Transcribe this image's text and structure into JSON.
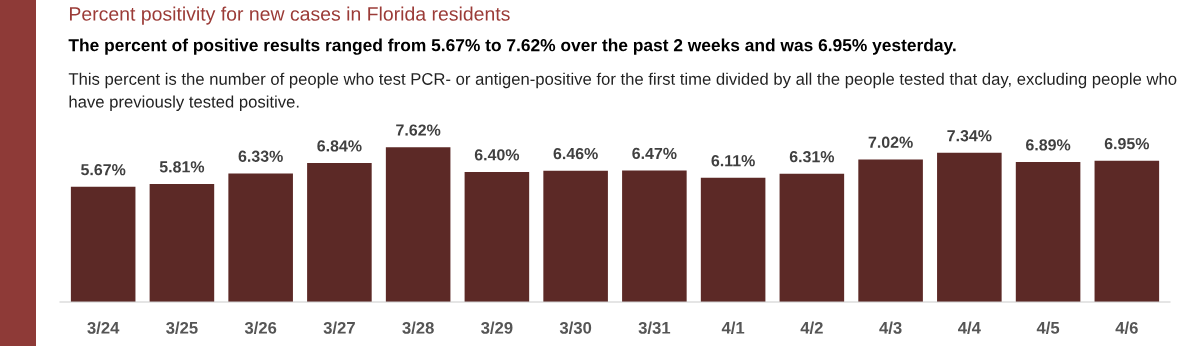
{
  "chart_data": {
    "type": "bar",
    "title": "Percent positivity for new cases in Florida residents",
    "subtitle": "The percent of positive results ranged from 5.67% to 7.62% over the past 2 weeks and was 6.95% yesterday.",
    "annotations": [
      "This percent is the number of people who test PCR- or antigen-positive for the first time divided by all the people tested that day, excluding people who have previously tested positive."
    ],
    "categories": [
      "3/24",
      "3/25",
      "3/26",
      "3/27",
      "3/28",
      "3/29",
      "3/30",
      "3/31",
      "4/1",
      "4/2",
      "4/3",
      "4/4",
      "4/5",
      "4/6"
    ],
    "values": [
      5.67,
      5.81,
      6.33,
      6.84,
      7.62,
      6.4,
      6.46,
      6.47,
      6.11,
      6.31,
      7.02,
      7.34,
      6.89,
      6.95
    ],
    "value_labels": [
      "5.67%",
      "5.81%",
      "6.33%",
      "6.84%",
      "7.62%",
      "6.40%",
      "6.46%",
      "6.47%",
      "6.11%",
      "6.31%",
      "7.02%",
      "7.34%",
      "6.89%",
      "6.95%"
    ],
    "color": "#5c2926",
    "tick_labels": "x",
    "grid": false,
    "legend": false
  }
}
